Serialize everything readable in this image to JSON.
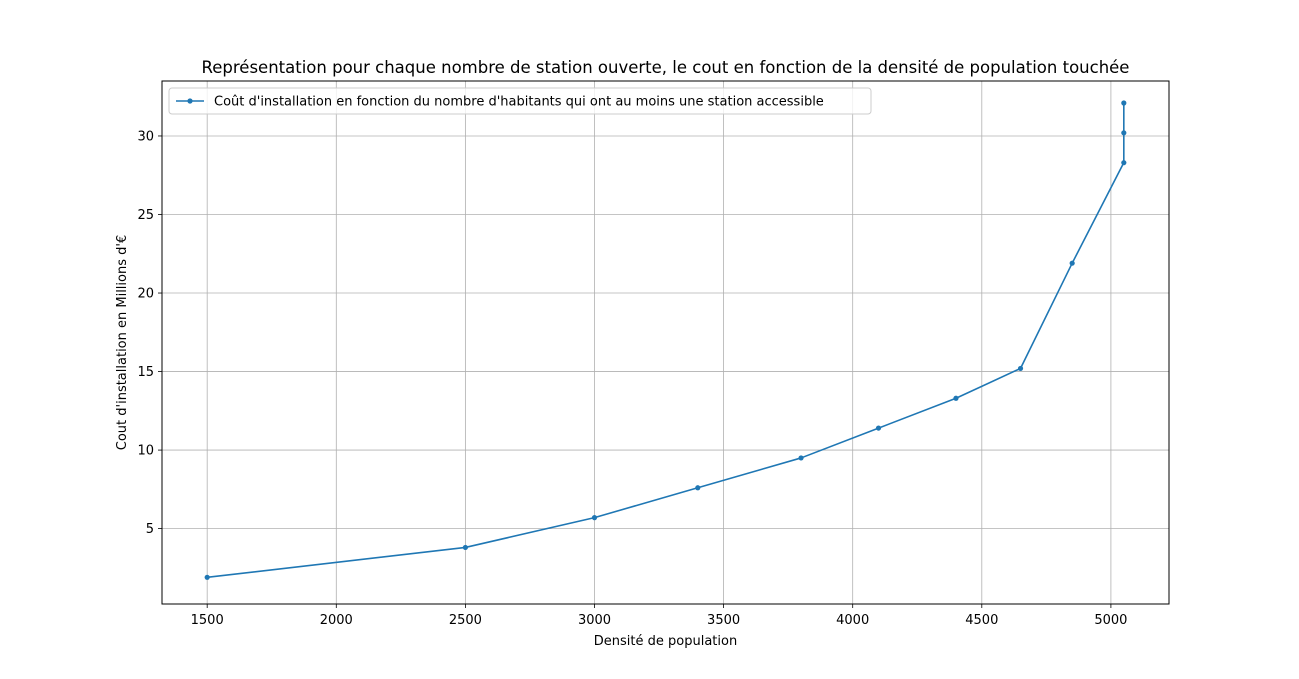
{
  "chart_data": {
    "type": "line",
    "title": "Représentation pour chaque nombre de station ouverte, le cout en fonction de la densité de population touchée",
    "xlabel": "Densité de population",
    "ylabel": "Cout d'installation en Millions d'€",
    "xlim": [
      1325,
      5225
    ],
    "ylim": [
      0.2,
      33.5
    ],
    "xticks": [
      1500,
      2000,
      2500,
      3000,
      3500,
      4000,
      4500,
      5000
    ],
    "yticks": [
      5,
      10,
      15,
      20,
      25,
      30
    ],
    "grid": true,
    "legend_position": "upper left",
    "series": [
      {
        "name": "Coût d'installation en fonction du nombre d'habitants qui ont au moins une station accessible",
        "color": "#1f77b4",
        "marker": "dot",
        "x": [
          1500,
          2500,
          3000,
          3400,
          3800,
          4100,
          4400,
          4650,
          4850,
          5050,
          5050,
          5050
        ],
        "y": [
          1.9,
          3.8,
          5.7,
          7.6,
          9.5,
          11.4,
          13.3,
          15.2,
          21.9,
          28.3,
          30.2,
          32.1
        ]
      }
    ]
  }
}
